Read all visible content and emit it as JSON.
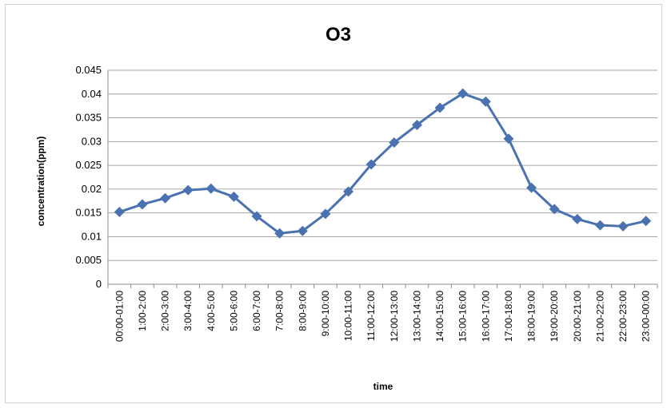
{
  "chart_data": {
    "type": "line",
    "title": "O3",
    "xlabel": "time",
    "ylabel": "concentration(ppm)",
    "ylim": [
      0,
      0.045
    ],
    "yticks": [
      "0",
      "0.005",
      "0.01",
      "0.015",
      "0.02",
      "0.025",
      "0.03",
      "0.035",
      "0.04",
      "0.045"
    ],
    "grid": true,
    "legend": "none",
    "categories": [
      "00:00-01:00",
      "1:00-2:00",
      "2:00-3:00",
      "3:00-4:00",
      "4:00-5:00",
      "5:00-6:00",
      "6:00-7:00",
      "7:00-8:00",
      "8:00-9:00",
      "9:00-10:00",
      "10:00-11:00",
      "11:00-12:00",
      "12:00-13:00",
      "13:00-14:00",
      "14:00-15:00",
      "15:00-16:00",
      "16:00-17:00",
      "17:00-18:00",
      "18:00-19:00",
      "19:00-20:00",
      "20:00-21:00",
      "21:00-22:00",
      "22:00-23:00",
      "23:00-00:00"
    ],
    "series": [
      {
        "color": "#4a72b0",
        "marker": "diamond",
        "values": [
          0.0152,
          0.0168,
          0.0181,
          0.0198,
          0.0201,
          0.0184,
          0.0143,
          0.0107,
          0.0112,
          0.0148,
          0.0195,
          0.0252,
          0.0298,
          0.0335,
          0.0371,
          0.0401,
          0.0384,
          0.0306,
          0.0203,
          0.0158,
          0.0137,
          0.0124,
          0.0122,
          0.0133
        ]
      }
    ]
  }
}
